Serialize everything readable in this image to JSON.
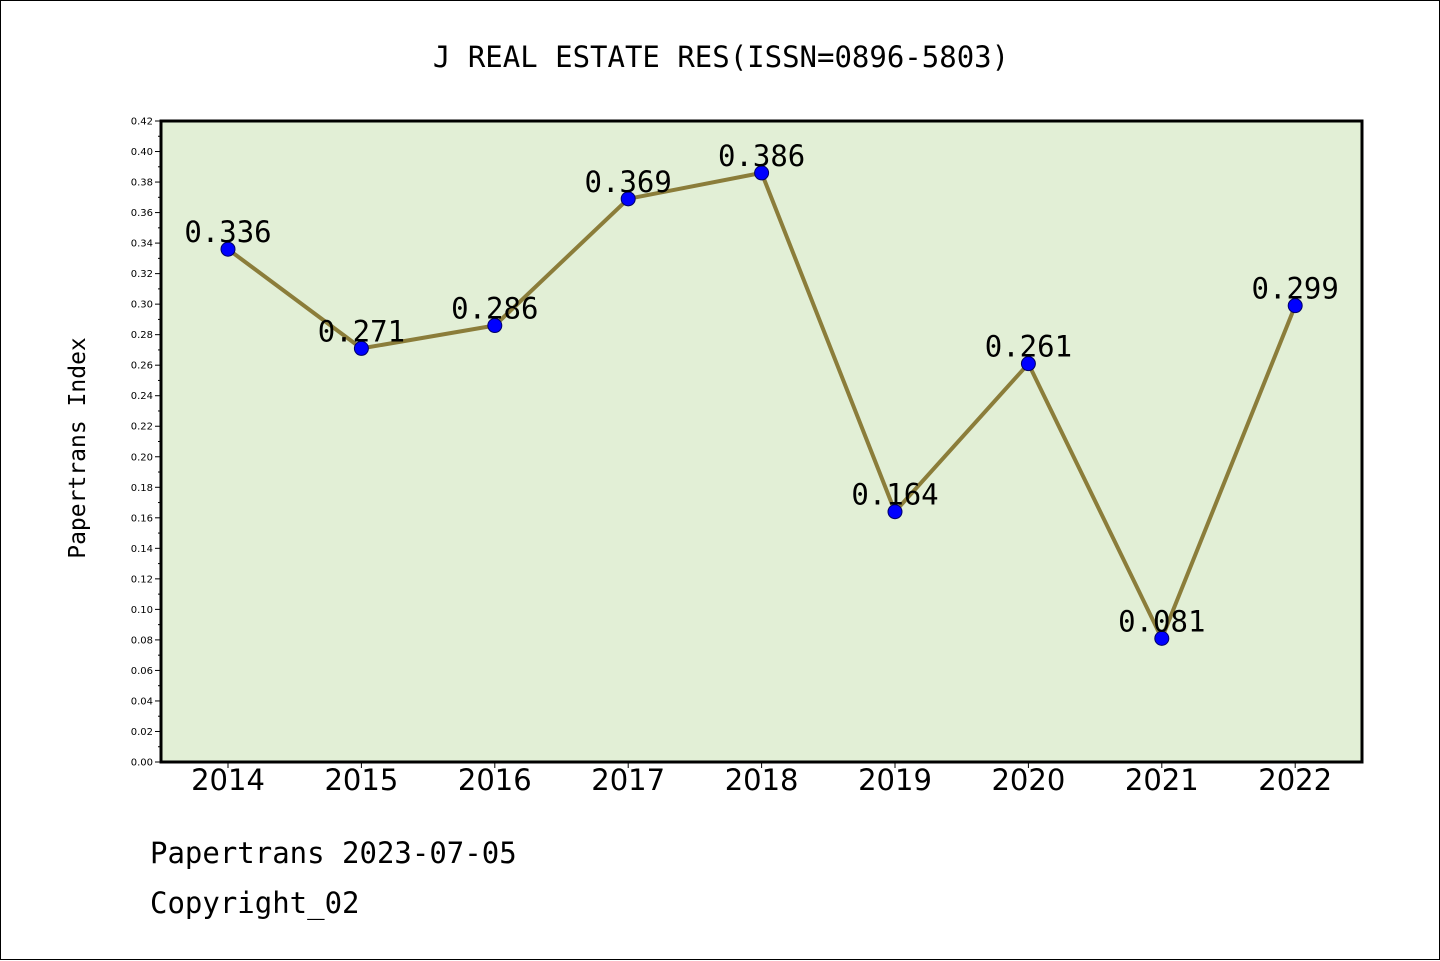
{
  "chart_data": {
    "type": "line",
    "title": "J REAL ESTATE RES(ISSN=0896-5803)",
    "xlabel": "",
    "ylabel": "Papertrans Index",
    "categories": [
      "2014",
      "2015",
      "2016",
      "2017",
      "2018",
      "2019",
      "2020",
      "2021",
      "2022"
    ],
    "series": [
      {
        "values": [
          0.336,
          0.271,
          0.286,
          0.369,
          0.386,
          0.164,
          0.261,
          0.081,
          0.299
        ],
        "data_labels": [
          "0.336",
          "0.271",
          "0.286",
          "0.369",
          "0.386",
          "0.164",
          "0.261",
          "0.081",
          "0.299"
        ]
      }
    ],
    "ylim": [
      0,
      0.42
    ],
    "yticks": [
      "0.00",
      "0.02",
      "0.04",
      "0.06",
      "0.08",
      "0.10",
      "0.12",
      "0.14",
      "0.16",
      "0.18",
      "0.20",
      "0.22",
      "0.24",
      "0.26",
      "0.28",
      "0.30",
      "0.32",
      "0.34",
      "0.36",
      "0.38",
      "0.40",
      "0.42"
    ],
    "grid": false,
    "legend": "none",
    "colors": {
      "plot_background": "#e2efd6",
      "line": "#8b7d3a",
      "marker_fill": "#0000ff",
      "marker_edge": "#000066"
    }
  },
  "footer": {
    "line1": "Papertrans 2023-07-05",
    "line2": "Copyright_02"
  }
}
